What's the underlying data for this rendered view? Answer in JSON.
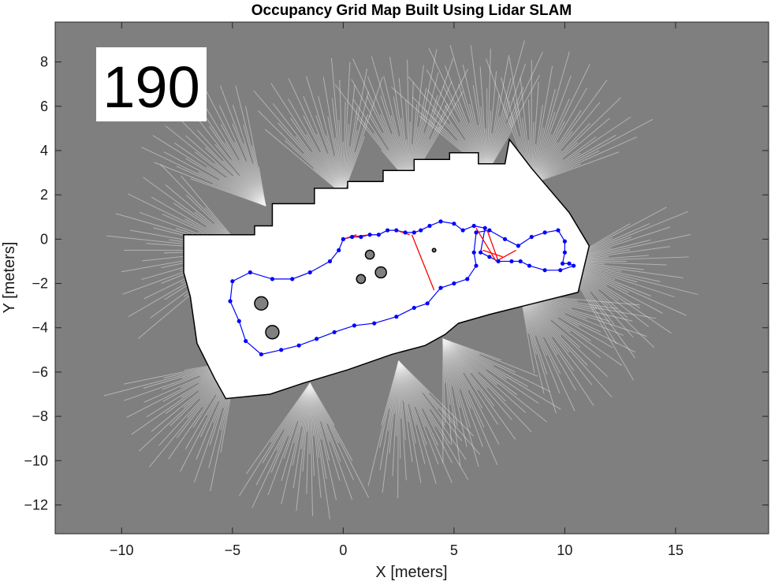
{
  "chart_data": {
    "type": "scatter",
    "title": "Occupancy Grid Map Built Using Lidar SLAM",
    "xlabel": "X [meters]",
    "ylabel": "Y [meters]",
    "xlim": [
      -13,
      19.2
    ],
    "ylim": [
      -13.3,
      9.8
    ],
    "xticks": [
      -10,
      -5,
      0,
      5,
      10,
      15
    ],
    "yticks": [
      -12,
      -10,
      -8,
      -6,
      -4,
      -2,
      0,
      2,
      4,
      6,
      8
    ],
    "frame_label": "190",
    "grid": false,
    "legend": "none",
    "colors": {
      "unknown": "#7f7f7f",
      "free": "#ffffff",
      "occupied": "#000000",
      "trajectory": "#0000ff",
      "loop_closure": "#ff0000"
    },
    "map_outline": [
      [
        -7.2,
        -0.4
      ],
      [
        -7.2,
        0.2
      ],
      [
        -4.0,
        0.2
      ],
      [
        -4.0,
        0.6
      ],
      [
        -3.2,
        0.6
      ],
      [
        -3.2,
        1.6
      ],
      [
        -1.3,
        1.6
      ],
      [
        -1.3,
        2.3
      ],
      [
        0.2,
        2.3
      ],
      [
        0.2,
        2.6
      ],
      [
        1.8,
        2.6
      ],
      [
        1.8,
        3.1
      ],
      [
        3.2,
        3.1
      ],
      [
        3.2,
        3.6
      ],
      [
        4.8,
        3.6
      ],
      [
        4.8,
        3.9
      ],
      [
        6.1,
        3.9
      ],
      [
        6.1,
        3.4
      ],
      [
        7.3,
        3.4
      ],
      [
        7.5,
        4.5
      ],
      [
        8.5,
        3.2
      ],
      [
        10.2,
        1.2
      ],
      [
        11.1,
        -0.3
      ],
      [
        10.6,
        -2.4
      ],
      [
        8.6,
        -2.9
      ],
      [
        6.6,
        -3.4
      ],
      [
        5.2,
        -3.8
      ],
      [
        4.6,
        -4.3
      ],
      [
        3.7,
        -4.8
      ],
      [
        2.2,
        -5.2
      ],
      [
        0.2,
        -5.9
      ],
      [
        -1.8,
        -6.5
      ],
      [
        -3.3,
        -7.0
      ],
      [
        -5.3,
        -7.2
      ],
      [
        -5.8,
        -6.3
      ],
      [
        -6.3,
        -5.3
      ],
      [
        -6.6,
        -4.7
      ],
      [
        -6.9,
        -2.6
      ],
      [
        -7.2,
        -1.5
      ]
    ],
    "occupied_obstacles": [
      {
        "x": -3.7,
        "y": -2.9,
        "r": 0.3
      },
      {
        "x": -3.2,
        "y": -4.2,
        "r": 0.3
      },
      {
        "x": 1.2,
        "y": -0.7,
        "r": 0.2
      },
      {
        "x": 1.7,
        "y": -1.5,
        "r": 0.25
      },
      {
        "x": 0.8,
        "y": -1.8,
        "r": 0.2
      },
      {
        "x": 4.1,
        "y": -0.5,
        "r": 0.08
      }
    ],
    "trajectory": [
      [
        0.0,
        0.0
      ],
      [
        -0.2,
        -0.5
      ],
      [
        -0.6,
        -1.0
      ],
      [
        -1.5,
        -1.5
      ],
      [
        -2.3,
        -1.8
      ],
      [
        -3.2,
        -1.8
      ],
      [
        -4.2,
        -1.5
      ],
      [
        -5.0,
        -1.9
      ],
      [
        -5.1,
        -2.8
      ],
      [
        -4.7,
        -3.7
      ],
      [
        -4.4,
        -4.6
      ],
      [
        -3.7,
        -5.2
      ],
      [
        -2.8,
        -5.0
      ],
      [
        -2.0,
        -4.8
      ],
      [
        -1.2,
        -4.5
      ],
      [
        -0.4,
        -4.2
      ],
      [
        0.5,
        -3.9
      ],
      [
        1.4,
        -3.8
      ],
      [
        2.4,
        -3.5
      ],
      [
        3.2,
        -3.1
      ],
      [
        3.8,
        -2.9
      ],
      [
        4.4,
        -2.2
      ],
      [
        5.0,
        -2.0
      ],
      [
        5.6,
        -1.8
      ],
      [
        6.0,
        -1.2
      ],
      [
        5.9,
        -0.6
      ],
      [
        6.0,
        0.3
      ],
      [
        6.6,
        0.4
      ],
      [
        7.3,
        0.0
      ],
      [
        7.9,
        -0.3
      ],
      [
        8.5,
        0.1
      ],
      [
        9.1,
        0.3
      ],
      [
        9.7,
        0.4
      ],
      [
        10.0,
        -0.1
      ],
      [
        10.0,
        -0.6
      ],
      [
        9.9,
        -1.1
      ],
      [
        10.2,
        -1.1
      ],
      [
        10.4,
        -1.2
      ],
      [
        9.8,
        -1.4
      ],
      [
        9.1,
        -1.4
      ],
      [
        8.4,
        -1.2
      ],
      [
        8.0,
        -1.0
      ],
      [
        7.6,
        -1.0
      ],
      [
        7.0,
        -1.0
      ],
      [
        6.6,
        -0.8
      ],
      [
        6.2,
        -0.6
      ],
      [
        6.4,
        0.5
      ],
      [
        5.9,
        0.6
      ],
      [
        5.4,
        0.4
      ],
      [
        5.0,
        0.7
      ],
      [
        4.4,
        0.8
      ],
      [
        3.9,
        0.6
      ],
      [
        3.5,
        0.4
      ],
      [
        3.2,
        0.3
      ],
      [
        2.8,
        0.3
      ],
      [
        2.4,
        0.4
      ],
      [
        2.0,
        0.4
      ],
      [
        1.6,
        0.2
      ],
      [
        1.2,
        0.2
      ],
      [
        0.8,
        0.1
      ],
      [
        0.4,
        0.1
      ],
      [
        0.0,
        0.0
      ]
    ],
    "loop_closures": [
      [
        [
          0.0,
          0.0
        ],
        [
          0.6,
          0.2
        ]
      ],
      [
        [
          0.4,
          0.1
        ],
        [
          1.2,
          0.2
        ]
      ],
      [
        [
          2.4,
          0.4
        ],
        [
          3.0,
          0.2
        ]
      ],
      [
        [
          3.1,
          0.2
        ],
        [
          4.1,
          -2.3
        ]
      ],
      [
        [
          6.0,
          0.5
        ],
        [
          6.9,
          -1.0
        ]
      ],
      [
        [
          6.5,
          0.4
        ],
        [
          7.0,
          -1.0
        ]
      ],
      [
        [
          6.3,
          -0.5
        ],
        [
          7.2,
          -0.8
        ]
      ],
      [
        [
          6.9,
          -1.0
        ],
        [
          7.8,
          -0.5
        ]
      ]
    ]
  }
}
